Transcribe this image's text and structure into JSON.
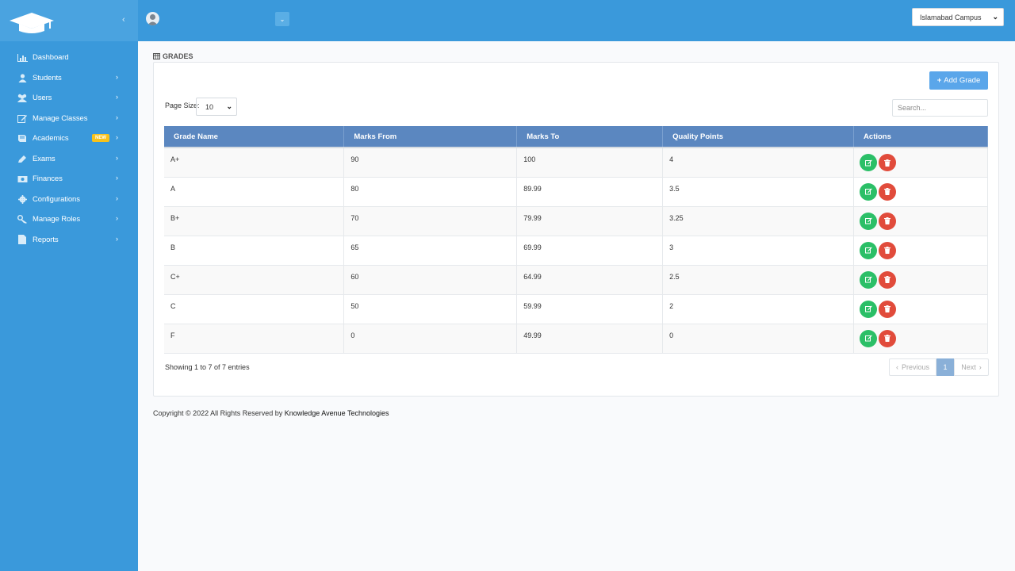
{
  "sidebar": {
    "items": [
      {
        "label": "Dashboard",
        "icon": "bar-chart-icon",
        "has_children": false
      },
      {
        "label": "Students",
        "icon": "user-icon",
        "has_children": true
      },
      {
        "label": "Users",
        "icon": "users-icon",
        "has_children": true
      },
      {
        "label": "Manage Classes",
        "icon": "edit-icon",
        "has_children": true
      },
      {
        "label": "Academics",
        "icon": "book-icon",
        "has_children": true,
        "badge": "NEW"
      },
      {
        "label": "Exams",
        "icon": "pencil-icon",
        "has_children": true
      },
      {
        "label": "Finances",
        "icon": "money-icon",
        "has_children": true
      },
      {
        "label": "Configurations",
        "icon": "gear-icon",
        "has_children": true
      },
      {
        "label": "Manage Roles",
        "icon": "key-icon",
        "has_children": true
      },
      {
        "label": "Reports",
        "icon": "file-icon",
        "has_children": true
      }
    ]
  },
  "topbar": {
    "campus": "Islamabad Campus"
  },
  "page": {
    "title": "GRADES",
    "add_button": "Add Grade",
    "page_size_label": "Page Size:",
    "page_size_value": "10",
    "search_placeholder": "Search..."
  },
  "table": {
    "columns": [
      "Grade Name",
      "Marks From",
      "Marks To",
      "Quality Points",
      "Actions"
    ],
    "rows": [
      {
        "grade": "A+",
        "from": "90",
        "to": "100",
        "qp": "4"
      },
      {
        "grade": "A",
        "from": "80",
        "to": "89.99",
        "qp": "3.5"
      },
      {
        "grade": "B+",
        "from": "70",
        "to": "79.99",
        "qp": "3.25"
      },
      {
        "grade": "B",
        "from": "65",
        "to": "69.99",
        "qp": "3"
      },
      {
        "grade": "C+",
        "from": "60",
        "to": "64.99",
        "qp": "2.5"
      },
      {
        "grade": "C",
        "from": "50",
        "to": "59.99",
        "qp": "2"
      },
      {
        "grade": "F",
        "from": "0",
        "to": "49.99",
        "qp": "0"
      }
    ]
  },
  "pagination": {
    "showing": "Showing 1 to 7 of 7 entries",
    "previous": "Previous",
    "current": "1",
    "next": "Next"
  },
  "footer": {
    "copyright": "Copyright © 2022 All Rights Reserved by ",
    "company": "Knowledge Avenue Technologies"
  },
  "colors": {
    "sidebar": "#3a99db",
    "header": "#5b87c0",
    "edit": "#2bbf67",
    "delete": "#e14b3b",
    "add_button": "#5aa6ea",
    "badge": "#f7c21b"
  }
}
